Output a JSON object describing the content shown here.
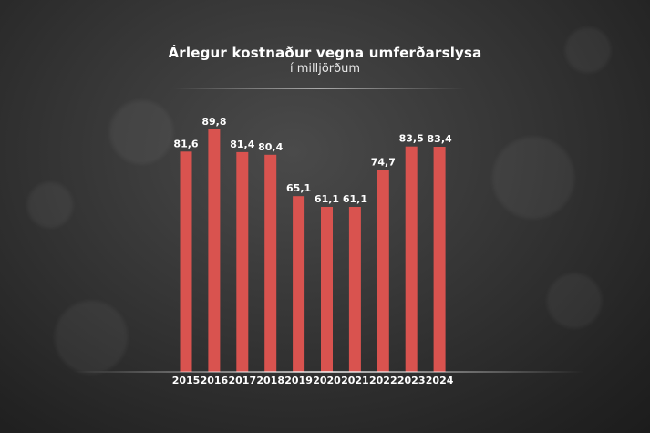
{
  "chart_data": {
    "type": "bar",
    "title": "Árlegur kostnaður vegna umferðarslysa",
    "subtitle": "í milljörðum",
    "categories": [
      "2015",
      "2016",
      "2017",
      "2018",
      "2019",
      "2020",
      "2021",
      "2022",
      "2023",
      "2024"
    ],
    "values": [
      81.6,
      89.8,
      81.4,
      80.4,
      65.1,
      61.1,
      61.1,
      74.7,
      83.5,
      83.4
    ],
    "value_labels": [
      "81,6",
      "89,8",
      "81,4",
      "80,4",
      "65,1",
      "61,1",
      "61,1",
      "74,7",
      "83,5",
      "83,4"
    ],
    "ylim": [
      0,
      100
    ],
    "grid": false,
    "legend": "none",
    "bar_color": "#d9534f"
  }
}
